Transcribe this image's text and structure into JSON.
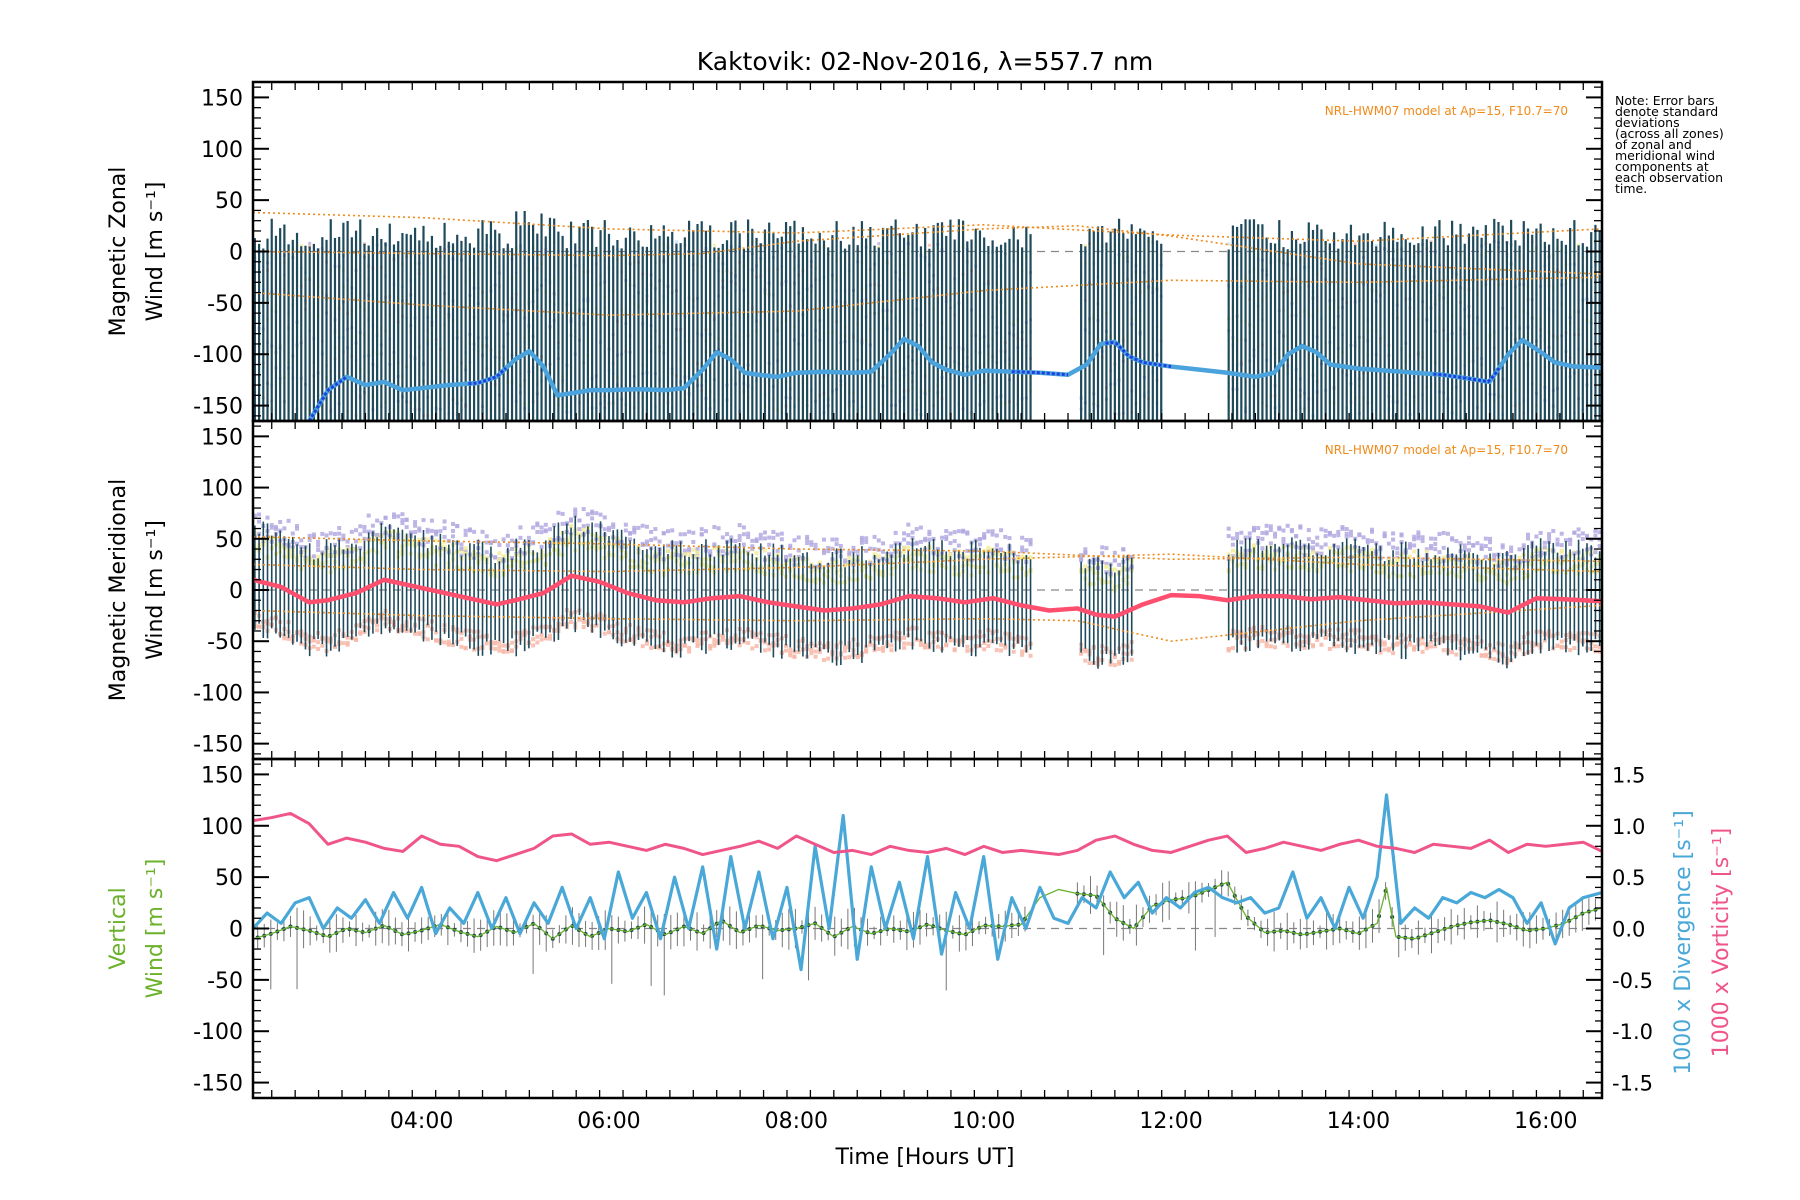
{
  "title": "Kaktovik: 02-Nov-2016, λ=557.7 nm",
  "note": "Note: Error bars\ndenote standard\ndeviations\n(across all zones)\nof zonal and\nmeridional wind\ncomponents at\neach observation\ntime.",
  "xlabel": "Time [Hours UT]",
  "colors": {
    "zonal_line": "#4aa3dc",
    "zonal_line_dark": "#1f3fe0",
    "meridional_line": "#ff4f6e",
    "vertical": "#6bb12c",
    "divergence": "#4aa8d8",
    "vorticity": "#f0558a",
    "hwm": "#f08a1a",
    "errbar": "#1e4a5c",
    "scatter_purple": "#b3a9e0",
    "scatter_yellow": "#f3ec9b",
    "scatter_pink": "#f7b8a8"
  },
  "chart_data": [
    {
      "panel": "zonal",
      "type": "line",
      "ylabel_line1": "Magnetic Zonal",
      "ylabel_line2": "Wind [m s⁻¹]",
      "annotation": "NRL-HWM07 model at Ap=15, F10.7=70",
      "xlim": [
        2.2,
        16.6
      ],
      "ylim": [
        -165,
        165
      ],
      "yticks": [
        -150,
        -100,
        -50,
        0,
        50,
        100,
        150
      ],
      "error_band_upper_ref": 15,
      "error_band_lower_ref": -165,
      "series": [
        {
          "x": [
            2.8,
            3.0,
            3.2,
            3.4,
            3.6,
            3.8,
            4.0,
            4.3,
            4.6,
            4.8,
            5.0,
            5.15,
            5.3,
            5.45,
            5.6,
            5.8,
            6.0,
            6.3,
            6.6,
            6.8,
            7.0,
            7.15,
            7.3,
            7.45,
            7.6,
            7.8,
            8.0,
            8.3,
            8.6,
            8.8,
            9.0,
            9.15,
            9.3,
            9.45,
            9.6,
            9.8,
            10.0,
            10.3,
            10.6,
            10.9,
            11.1,
            11.25,
            11.4,
            11.55,
            11.7,
            12.0,
            12.3,
            12.6,
            12.9,
            13.1,
            13.25,
            13.4,
            13.55,
            13.7,
            14.0,
            14.3,
            14.6,
            14.9,
            15.2,
            15.4,
            15.6,
            15.75,
            15.9,
            16.1,
            16.3,
            16.6
          ],
          "y": [
            -165,
            -135,
            -122,
            -130,
            -127,
            -135,
            -133,
            -130,
            -128,
            -122,
            -105,
            -97,
            -112,
            -140,
            -138,
            -135,
            -135,
            -134,
            -135,
            -133,
            -115,
            -98,
            -105,
            -118,
            -120,
            -122,
            -118,
            -117,
            -118,
            -117,
            -100,
            -85,
            -92,
            -108,
            -115,
            -120,
            -116,
            -117,
            -118,
            -120,
            -110,
            -90,
            -88,
            -102,
            -108,
            -112,
            -115,
            -118,
            -122,
            -118,
            -100,
            -92,
            -98,
            -110,
            -114,
            -116,
            -118,
            -120,
            -124,
            -127,
            -100,
            -86,
            -95,
            -108,
            -112,
            -113
          ]
        }
      ],
      "hwm_series": [
        {
          "x": [
            2.2,
            4.0,
            6.0,
            8.0,
            10.0,
            12.0,
            14.0,
            16.6
          ],
          "y": [
            38,
            33,
            22,
            18,
            26,
            16,
            10,
            22
          ]
        },
        {
          "x": [
            2.2,
            4.0,
            6.0,
            7.0,
            8.0,
            10.0,
            11.0,
            12.0,
            14.0,
            16.6
          ],
          "y": [
            0,
            -2,
            -4,
            -2,
            10,
            22,
            25,
            15,
            -12,
            -22
          ]
        },
        {
          "x": [
            2.2,
            4.0,
            6.0,
            8.0,
            10.0,
            12.0,
            14.0,
            16.6
          ],
          "y": [
            -40,
            -52,
            -62,
            -58,
            -38,
            -28,
            -30,
            -25
          ]
        }
      ]
    },
    {
      "panel": "meridional",
      "type": "line",
      "ylabel_line1": "Magnetic Meridional",
      "ylabel_line2": "Wind [m s⁻¹]",
      "annotation": "NRL-HWM07 model at Ap=15, F10.7=70",
      "xlim": [
        2.2,
        16.6
      ],
      "ylim": [
        -165,
        165
      ],
      "yticks": [
        -150,
        -100,
        -50,
        0,
        50,
        100,
        150
      ],
      "series": [
        {
          "x": [
            2.2,
            2.5,
            2.8,
            3.0,
            3.3,
            3.6,
            3.9,
            4.2,
            4.5,
            4.8,
            5.0,
            5.3,
            5.6,
            5.9,
            6.2,
            6.5,
            6.8,
            7.1,
            7.4,
            7.7,
            8.0,
            8.3,
            8.6,
            8.9,
            9.2,
            9.5,
            9.8,
            10.1,
            10.4,
            10.7,
            11.0,
            11.2,
            11.4,
            11.7,
            12.0,
            12.3,
            12.6,
            12.9,
            13.2,
            13.5,
            13.8,
            14.1,
            14.4,
            14.7,
            15.0,
            15.3,
            15.6,
            15.9,
            16.2,
            16.6
          ],
          "y": [
            10,
            3,
            -12,
            -10,
            -3,
            10,
            4,
            -2,
            -8,
            -14,
            -10,
            -3,
            14,
            8,
            -3,
            -10,
            -12,
            -8,
            -6,
            -12,
            -16,
            -20,
            -18,
            -14,
            -6,
            -8,
            -12,
            -8,
            -15,
            -20,
            -18,
            -24,
            -26,
            -14,
            -5,
            -6,
            -10,
            -6,
            -6,
            -9,
            -7,
            -10,
            -13,
            -12,
            -14,
            -16,
            -22,
            -8,
            -9,
            -11
          ]
        }
      ],
      "hwm_series": [
        {
          "x": [
            2.2,
            4.0,
            6.0,
            8.0,
            10.0,
            12.0,
            14.0,
            16.6
          ],
          "y": [
            52,
            48,
            45,
            40,
            38,
            30,
            32,
            28
          ]
        },
        {
          "x": [
            2.2,
            4.0,
            6.0,
            8.0,
            10.0,
            12.0,
            14.0,
            16.6
          ],
          "y": [
            25,
            20,
            18,
            22,
            30,
            35,
            25,
            18
          ]
        },
        {
          "x": [
            2.2,
            4.0,
            6.0,
            8.0,
            10.0,
            11.0,
            12.0,
            14.0,
            16.6
          ],
          "y": [
            -20,
            -25,
            -28,
            -30,
            -28,
            -30,
            -50,
            -30,
            -15
          ]
        }
      ]
    },
    {
      "panel": "vertical",
      "type": "line",
      "ylabel_line1": "Vertical",
      "ylabel_line2": "Wind [m s⁻¹]",
      "y2label_line1": "1000 x Divergence [s⁻¹]",
      "y2label_line2": "1000 x Vorticity [s⁻¹]",
      "xlim": [
        2.2,
        16.6
      ],
      "ylim": [
        -165,
        165
      ],
      "yticks": [
        -150,
        -100,
        -50,
        0,
        50,
        100,
        150
      ],
      "y2lim": [
        -1.65,
        1.65
      ],
      "y2ticks": [
        -1.5,
        -1.0,
        -0.5,
        0.0,
        0.5,
        1.0,
        1.5
      ],
      "xticks": [
        4,
        6,
        8,
        10,
        12,
        14,
        16
      ],
      "xticklabels": [
        "04:00",
        "06:00",
        "08:00",
        "10:00",
        "12:00",
        "14:00",
        "16:00"
      ],
      "series": [
        {
          "name": "vertical",
          "x": [
            2.2,
            2.4,
            2.6,
            2.8,
            3.0,
            3.2,
            3.4,
            3.6,
            3.8,
            4.0,
            4.2,
            4.4,
            4.6,
            4.8,
            5.0,
            5.2,
            5.4,
            5.6,
            5.8,
            6.0,
            6.2,
            6.4,
            6.6,
            6.8,
            7.0,
            7.2,
            7.4,
            7.6,
            7.8,
            8.0,
            8.2,
            8.4,
            8.6,
            8.8,
            9.0,
            9.2,
            9.4,
            9.6,
            9.8,
            10.0,
            10.2,
            10.4,
            10.6,
            10.8,
            11.0,
            11.2,
            11.4,
            11.6,
            11.8,
            12.0,
            12.2,
            12.6,
            12.8,
            13.0,
            13.2,
            13.4,
            13.6,
            13.8,
            14.0,
            14.2,
            14.3,
            14.4,
            14.6,
            14.8,
            15.0,
            15.2,
            15.4,
            15.6,
            15.8,
            16.0,
            16.2,
            16.4,
            16.6
          ],
          "y": [
            -10,
            -5,
            2,
            -2,
            -8,
            0,
            -4,
            3,
            -6,
            -2,
            4,
            -3,
            -8,
            2,
            -4,
            5,
            -10,
            3,
            -8,
            0,
            -3,
            4,
            -6,
            2,
            -5,
            8,
            -4,
            3,
            -2,
            0,
            5,
            -8,
            2,
            -5,
            0,
            -3,
            4,
            -2,
            -6,
            3,
            2,
            4,
            30,
            38,
            34,
            32,
            10,
            0,
            22,
            28,
            30,
            45,
            12,
            -4,
            -2,
            -6,
            -3,
            0,
            -5,
            5,
            40,
            -8,
            -10,
            -4,
            2,
            6,
            8,
            4,
            -2,
            0,
            5,
            15,
            20
          ]
        },
        {
          "name": "divergence",
          "x": [
            2.2,
            2.35,
            2.5,
            2.65,
            2.8,
            2.95,
            3.1,
            3.25,
            3.4,
            3.55,
            3.7,
            3.85,
            4.0,
            4.15,
            4.3,
            4.45,
            4.6,
            4.75,
            4.9,
            5.05,
            5.2,
            5.35,
            5.5,
            5.65,
            5.8,
            5.95,
            6.1,
            6.25,
            6.4,
            6.55,
            6.7,
            6.85,
            7.0,
            7.15,
            7.3,
            7.45,
            7.6,
            7.75,
            7.9,
            8.05,
            8.2,
            8.35,
            8.5,
            8.65,
            8.8,
            8.95,
            9.1,
            9.25,
            9.4,
            9.55,
            9.7,
            9.85,
            10.0,
            10.15,
            10.3,
            10.45,
            10.6,
            10.75,
            10.9,
            11.05,
            11.2,
            11.35,
            11.5,
            11.65,
            11.8,
            11.95,
            12.1,
            12.25,
            12.4,
            12.55,
            12.7,
            12.85,
            13.0,
            13.15,
            13.3,
            13.45,
            13.6,
            13.75,
            13.9,
            14.05,
            14.2,
            14.3,
            14.45,
            14.6,
            14.75,
            14.9,
            15.05,
            15.2,
            15.35,
            15.5,
            15.65,
            15.8,
            15.95,
            16.1,
            16.25,
            16.4,
            16.6
          ],
          "y": [
            0.0,
            0.15,
            0.05,
            0.25,
            0.3,
            0.0,
            0.2,
            0.1,
            0.28,
            0.05,
            0.35,
            0.1,
            0.4,
            -0.05,
            0.2,
            0.05,
            0.35,
            0.0,
            0.3,
            -0.05,
            0.25,
            0.05,
            0.4,
            0.0,
            0.3,
            -0.1,
            0.55,
            0.1,
            0.35,
            -0.1,
            0.5,
            0.0,
            0.6,
            -0.2,
            0.7,
            0.0,
            0.55,
            -0.1,
            0.4,
            -0.4,
            0.8,
            0.0,
            1.1,
            -0.3,
            0.6,
            0.0,
            0.45,
            -0.1,
            0.7,
            -0.25,
            0.35,
            0.0,
            0.7,
            -0.3,
            0.3,
            0.0,
            0.4,
            0.1,
            0.05,
            0.3,
            0.2,
            0.55,
            0.3,
            0.45,
            0.15,
            0.3,
            0.2,
            0.35,
            0.4,
            0.3,
            0.25,
            0.3,
            0.15,
            0.2,
            0.55,
            0.1,
            0.3,
            0.0,
            0.4,
            0.1,
            0.5,
            1.3,
            0.05,
            0.2,
            0.1,
            0.3,
            0.25,
            0.35,
            0.3,
            0.38,
            0.3,
            0.05,
            0.25,
            -0.15,
            0.2,
            0.3,
            0.35
          ]
        },
        {
          "name": "vorticity",
          "x": [
            2.2,
            2.4,
            2.6,
            2.8,
            3.0,
            3.2,
            3.4,
            3.6,
            3.8,
            4.0,
            4.2,
            4.4,
            4.6,
            4.8,
            5.0,
            5.2,
            5.4,
            5.6,
            5.8,
            6.0,
            6.2,
            6.4,
            6.6,
            6.8,
            7.0,
            7.2,
            7.4,
            7.6,
            7.8,
            8.0,
            8.2,
            8.4,
            8.6,
            8.8,
            9.0,
            9.2,
            9.4,
            9.6,
            9.8,
            10.0,
            10.2,
            10.4,
            10.6,
            10.8,
            11.0,
            11.2,
            11.4,
            11.6,
            11.8,
            12.0,
            12.2,
            12.4,
            12.6,
            12.8,
            13.0,
            13.2,
            13.4,
            13.6,
            13.8,
            14.0,
            14.2,
            14.4,
            14.6,
            14.8,
            15.0,
            15.2,
            15.4,
            15.6,
            15.8,
            16.0,
            16.2,
            16.4,
            16.6
          ],
          "y": [
            1.05,
            1.08,
            1.12,
            1.02,
            0.82,
            0.88,
            0.84,
            0.78,
            0.75,
            0.9,
            0.82,
            0.8,
            0.7,
            0.66,
            0.72,
            0.78,
            0.9,
            0.92,
            0.82,
            0.84,
            0.8,
            0.76,
            0.82,
            0.78,
            0.72,
            0.76,
            0.8,
            0.85,
            0.78,
            0.9,
            0.82,
            0.74,
            0.76,
            0.72,
            0.8,
            0.76,
            0.74,
            0.78,
            0.72,
            0.8,
            0.74,
            0.76,
            0.74,
            0.72,
            0.76,
            0.86,
            0.9,
            0.82,
            0.76,
            0.74,
            0.8,
            0.86,
            0.9,
            0.74,
            0.78,
            0.84,
            0.8,
            0.76,
            0.82,
            0.86,
            0.8,
            0.78,
            0.74,
            0.82,
            0.8,
            0.78,
            0.86,
            0.74,
            0.82,
            0.8,
            0.82,
            0.84,
            0.75
          ]
        }
      ]
    }
  ]
}
